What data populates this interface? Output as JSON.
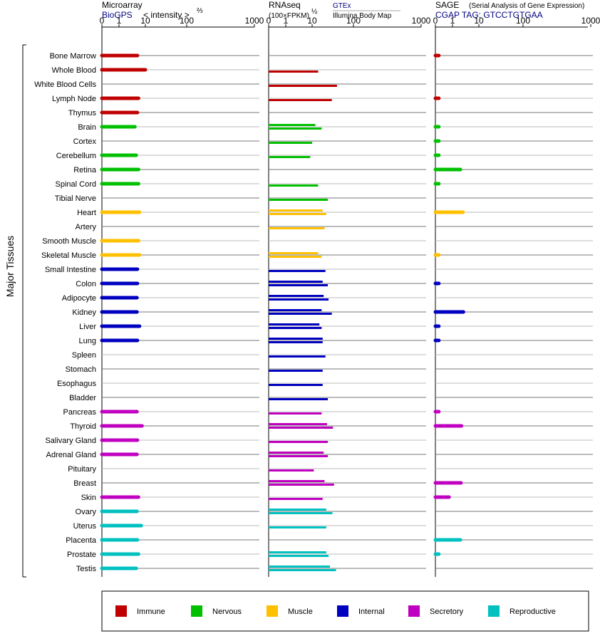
{
  "panels": {
    "microarray": {
      "title": "Microarray",
      "source": "BioGPS",
      "unit_label": "< intensity >",
      "unit_exp": "⅔"
    },
    "rnaseq": {
      "title": "RNAseq",
      "unit_label": "(100×FPKM)",
      "unit_exp": "½",
      "legend_gtex": "GTEx",
      "legend_illumina": "Illumina Body Map"
    },
    "sage": {
      "title": "SAGE",
      "subtitle": "(Serial Analysis of Gene Expression)",
      "tag_label": "CGAP TAG: GTCCTGTGAA"
    }
  },
  "axis_ticks": [
    "0",
    "1",
    "10",
    "100",
    "1000"
  ],
  "group_label": "Major Tissues",
  "legend": [
    {
      "label": "Immune",
      "color": "#c00000"
    },
    {
      "label": "Nervous",
      "color": "#00c000"
    },
    {
      "label": "Muscle",
      "color": "#ffc000"
    },
    {
      "label": "Internal",
      "color": "#0000c0"
    },
    {
      "label": "Secretory",
      "color": "#c000c0"
    },
    {
      "label": "Reproductive",
      "color": "#00c0c0"
    }
  ],
  "chart_data": {
    "type": "bar",
    "scale": "log-like (0, 1, 10, 100, 1000)",
    "xlim": [
      0,
      1000
    ],
    "categories": [
      "Bone Marrow",
      "Whole Blood",
      "White Blood Cells",
      "Lymph Node",
      "Thymus",
      "Brain",
      "Cortex",
      "Cerebellum",
      "Retina",
      "Spinal Cord",
      "Tibial Nerve",
      "Heart",
      "Artery",
      "Smooth Muscle",
      "Skeletal Muscle",
      "Small Intestine",
      "Colon",
      "Adipocyte",
      "Kidney",
      "Liver",
      "Lung",
      "Spleen",
      "Stomach",
      "Esophagus",
      "Bladder",
      "Pancreas",
      "Thyroid",
      "Salivary Gland",
      "Adrenal Gland",
      "Pituitary",
      "Breast",
      "Skin",
      "Ovary",
      "Uterus",
      "Placenta",
      "Prostate",
      "Testis"
    ],
    "tissue_groups": [
      "Immune",
      "Immune",
      "Immune",
      "Immune",
      "Immune",
      "Nervous",
      "Nervous",
      "Nervous",
      "Nervous",
      "Nervous",
      "Nervous",
      "Muscle",
      "Muscle",
      "Muscle",
      "Muscle",
      "Internal",
      "Internal",
      "Internal",
      "Internal",
      "Internal",
      "Internal",
      "Internal",
      "Internal",
      "Internal",
      "Internal",
      "Secretory",
      "Secretory",
      "Secretory",
      "Secretory",
      "Secretory",
      "Secretory",
      "Secretory",
      "Reproductive",
      "Reproductive",
      "Reproductive",
      "Reproductive",
      "Reproductive"
    ],
    "series": [
      {
        "name": "Microarray",
        "values": [
          5.0,
          10.0,
          null,
          5.5,
          5.0,
          4.0,
          null,
          4.5,
          5.5,
          5.5,
          null,
          6.0,
          null,
          5.5,
          6.0,
          5.0,
          5.0,
          4.8,
          4.8,
          6.0,
          5.0,
          null,
          null,
          null,
          null,
          4.8,
          7.5,
          5.0,
          4.8,
          null,
          null,
          5.5,
          4.8,
          7.0,
          5.0,
          5.5,
          4.5
        ]
      },
      {
        "name": "GTEx",
        "values": [
          null,
          null,
          null,
          null,
          null,
          12.0,
          null,
          null,
          null,
          null,
          null,
          18.0,
          null,
          null,
          14.0,
          null,
          18.0,
          19.0,
          17.0,
          15.0,
          18.0,
          null,
          null,
          null,
          null,
          null,
          23.0,
          null,
          19.0,
          null,
          20.0,
          null,
          22.0,
          null,
          null,
          22.0,
          27.0
        ]
      },
      {
        "name": "Illumina Body Map",
        "values": [
          null,
          14.0,
          40.0,
          30.0,
          null,
          17.0,
          10.0,
          8.5,
          null,
          14.0,
          24.0,
          22.0,
          20.0,
          null,
          17.0,
          21.0,
          24.0,
          25.0,
          30.0,
          17.0,
          18.0,
          21.0,
          18.0,
          18.0,
          24.0,
          17.0,
          32.0,
          24.0,
          24.0,
          11.0,
          34.0,
          18.0,
          31.0,
          22.0,
          null,
          25.0,
          38.0
        ]
      },
      {
        "name": "SAGE",
        "values": [
          0.2,
          null,
          null,
          0.2,
          null,
          0.2,
          0.2,
          0.2,
          2.0,
          0.2,
          null,
          2.5,
          null,
          null,
          0.2,
          null,
          0.2,
          null,
          2.6,
          0.2,
          0.2,
          null,
          null,
          null,
          null,
          0.2,
          2.2,
          null,
          null,
          null,
          2.1,
          0.8,
          null,
          null,
          2.0,
          0.2,
          null
        ]
      }
    ]
  }
}
